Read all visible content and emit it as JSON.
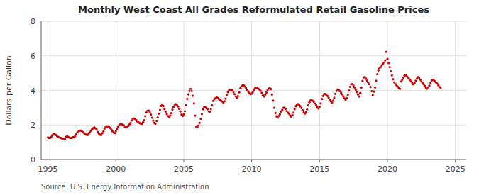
{
  "chart_data": {
    "type": "scatter",
    "title": "Monthly West Coast All Grades Reformulated Retail Gasoline Prices",
    "ylabel": "Dollars per Gallon",
    "source": "Source: U.S. Energy Information Administration",
    "color": "#cc0000",
    "grid": true,
    "xlim": [
      1994.5,
      2025.8
    ],
    "ylim": [
      0,
      8
    ],
    "yticks": [
      0,
      2,
      4,
      6,
      8
    ],
    "xticks": [
      1995,
      2000,
      2005,
      2010,
      2015,
      2020,
      2025
    ],
    "x": [
      1995,
      1995.0833,
      1995.1667,
      1995.25,
      1995.3333,
      1995.4167,
      1995.5,
      1995.5833,
      1995.6667,
      1995.75,
      1995.8333,
      1995.9167,
      1996,
      1996.0833,
      1996.1667,
      1996.25,
      1996.3333,
      1996.4167,
      1996.5,
      1996.5833,
      1996.6667,
      1996.75,
      1996.8333,
      1996.9167,
      1997,
      1997.0833,
      1997.1667,
      1997.25,
      1997.3333,
      1997.4167,
      1997.5,
      1997.5833,
      1997.6667,
      1997.75,
      1997.8333,
      1997.9167,
      1998,
      1998.0833,
      1998.1667,
      1998.25,
      1998.3333,
      1998.4167,
      1998.5,
      1998.5833,
      1998.6667,
      1998.75,
      1998.8333,
      1998.9167,
      1999,
      1999.0833,
      1999.1667,
      1999.25,
      1999.3333,
      1999.4167,
      1999.5,
      1999.5833,
      1999.6667,
      1999.75,
      1999.8333,
      1999.9167,
      2000,
      2000.0833,
      2000.1667,
      2000.25,
      2000.3333,
      2000.4167,
      2000.5,
      2000.5833,
      2000.6667,
      2000.75,
      2000.8333,
      2000.9167,
      2001,
      2001.0833,
      2001.1667,
      2001.25,
      2001.3333,
      2001.4167,
      2001.5,
      2001.5833,
      2001.6667,
      2001.75,
      2001.8333,
      2001.9167,
      2002,
      2002.0833,
      2002.1667,
      2002.25,
      2002.3333,
      2002.4167,
      2002.5,
      2002.5833,
      2002.6667,
      2002.75,
      2002.8333,
      2002.9167,
      2003,
      2003.0833,
      2003.1667,
      2003.25,
      2003.3333,
      2003.4167,
      2003.5,
      2003.5833,
      2003.6667,
      2003.75,
      2003.8333,
      2003.9167,
      2004,
      2004.0833,
      2004.1667,
      2004.25,
      2004.3333,
      2004.4167,
      2004.5,
      2004.5833,
      2004.6667,
      2004.75,
      2004.8333,
      2004.9167,
      2005,
      2005.0833,
      2005.1667,
      2005.25,
      2005.3333,
      2005.4167,
      2005.5,
      2005.5833,
      2005.6667,
      2005.75,
      2005.8333,
      2005.9167,
      2006,
      2006.0833,
      2006.1667,
      2006.25,
      2006.3333,
      2006.4167,
      2006.5,
      2006.5833,
      2006.6667,
      2006.75,
      2006.8333,
      2006.9167,
      2007,
      2007.0833,
      2007.1667,
      2007.25,
      2007.3333,
      2007.4167,
      2007.5,
      2007.5833,
      2007.6667,
      2007.75,
      2007.8333,
      2007.9167,
      2008,
      2008.0833,
      2008.1667,
      2008.25,
      2008.3333,
      2008.4167,
      2008.5,
      2008.5833,
      2008.6667,
      2008.75,
      2008.8333,
      2008.9167,
      2009,
      2009.0833,
      2009.1667,
      2009.25,
      2009.3333,
      2009.4167,
      2009.5,
      2009.5833,
      2009.6667,
      2009.75,
      2009.8333,
      2009.9167,
      2010,
      2010.0833,
      2010.1667,
      2010.25,
      2010.3333,
      2010.4167,
      2010.5,
      2010.5833,
      2010.6667,
      2010.75,
      2010.8333,
      2010.9167,
      2011,
      2011.0833,
      2011.1667,
      2011.25,
      2011.3333,
      2011.4167,
      2011.5,
      2011.5833,
      2011.6667,
      2011.75,
      2011.8333,
      2011.9167,
      2012,
      2012.0833,
      2012.1667,
      2012.25,
      2012.3333,
      2012.4167,
      2012.5,
      2012.5833,
      2012.6667,
      2012.75,
      2012.8333,
      2012.9167,
      2013,
      2013.0833,
      2013.1667,
      2013.25,
      2013.3333,
      2013.4167,
      2013.5,
      2013.5833,
      2013.6667,
      2013.75,
      2013.8333,
      2013.9167,
      2014,
      2014.0833,
      2014.1667,
      2014.25,
      2014.3333,
      2014.4167,
      2014.5,
      2014.5833,
      2014.6667,
      2014.75,
      2014.8333,
      2014.9167,
      2015,
      2015.0833,
      2015.1667,
      2015.25,
      2015.3333,
      2015.4167,
      2015.5,
      2015.5833,
      2015.6667,
      2015.75,
      2015.8333,
      2015.9167,
      2016,
      2016.0833,
      2016.1667,
      2016.25,
      2016.3333,
      2016.4167,
      2016.5,
      2016.5833,
      2016.6667,
      2016.75,
      2016.8333,
      2016.9167,
      2017,
      2017.0833,
      2017.1667,
      2017.25,
      2017.3333,
      2017.4167,
      2017.5,
      2017.5833,
      2017.6667,
      2017.75,
      2017.8333,
      2017.9167,
      2018,
      2018.0833,
      2018.1667,
      2018.25,
      2018.3333,
      2018.4167,
      2018.5,
      2018.5833,
      2018.6667,
      2018.75,
      2018.8333,
      2018.9167,
      2019,
      2019.0833,
      2019.1667,
      2019.25,
      2019.3333,
      2019.4167,
      2019.5,
      2019.5833,
      2019.6667,
      2019.75,
      2019.8333,
      2019.9167,
      2020,
      2020.0833,
      2020.1667,
      2020.25,
      2020.3333,
      2020.4167,
      2020.5,
      2020.5833,
      2020.6667,
      2020.75,
      2020.8333,
      2020.9167,
      2021,
      2021.0833,
      2021.1667,
      2021.25,
      2021.3333,
      2021.4167,
      2021.5,
      2021.5833,
      2021.6667,
      2021.75,
      2021.8333,
      2021.9167,
      2022,
      2022.0833,
      2022.1667,
      2022.25,
      2022.3333,
      2022.4167,
      2022.5,
      2022.5833,
      2022.6667,
      2022.75,
      2022.8333,
      2022.9167,
      2023,
      2023.0833,
      2023.1667,
      2023.25,
      2023.3333,
      2023.4167,
      2023.5,
      2023.5833,
      2023.6667,
      2023.75,
      2023.8333,
      2023.9167
    ],
    "values": [
      1.28,
      1.25,
      1.26,
      1.32,
      1.41,
      1.46,
      1.46,
      1.42,
      1.36,
      1.31,
      1.28,
      1.26,
      1.24,
      1.18,
      1.17,
      1.2,
      1.31,
      1.35,
      1.31,
      1.27,
      1.24,
      1.26,
      1.3,
      1.3,
      1.35,
      1.46,
      1.57,
      1.62,
      1.67,
      1.68,
      1.65,
      1.58,
      1.52,
      1.47,
      1.44,
      1.42,
      1.51,
      1.58,
      1.67,
      1.75,
      1.82,
      1.86,
      1.8,
      1.73,
      1.6,
      1.5,
      1.44,
      1.42,
      1.52,
      1.63,
      1.79,
      1.88,
      1.92,
      1.92,
      1.87,
      1.83,
      1.74,
      1.64,
      1.57,
      1.53,
      1.64,
      1.75,
      1.88,
      1.98,
      2.05,
      2.06,
      2.02,
      1.98,
      1.9,
      1.87,
      1.9,
      1.95,
      2.04,
      2.12,
      2.26,
      2.36,
      2.38,
      2.36,
      2.28,
      2.21,
      2.15,
      2.11,
      2.08,
      2.06,
      2.16,
      2.27,
      2.51,
      2.72,
      2.82,
      2.83,
      2.72,
      2.6,
      2.42,
      2.25,
      2.12,
      2.08,
      2.24,
      2.44,
      2.65,
      2.87,
      3.1,
      3.17,
      3.09,
      2.92,
      2.77,
      2.63,
      2.52,
      2.46,
      2.54,
      2.68,
      2.89,
      3.04,
      3.16,
      3.2,
      3.15,
      3.07,
      2.93,
      2.78,
      2.6,
      2.52,
      2.61,
      2.8,
      3.15,
      3.51,
      3.77,
      3.97,
      4.09,
      3.97,
      3.69,
      3.25,
      2.54,
      1.9,
      1.88,
      1.97,
      2.12,
      2.36,
      2.64,
      2.91,
      3.04,
      3.04,
      2.97,
      2.91,
      2.79,
      2.77,
      2.92,
      3.13,
      3.39,
      3.49,
      3.54,
      3.6,
      3.57,
      3.51,
      3.44,
      3.4,
      3.36,
      3.29,
      3.37,
      3.52,
      3.73,
      3.9,
      4.01,
      4.04,
      4.04,
      4.0,
      3.9,
      3.78,
      3.65,
      3.57,
      3.67,
      3.89,
      4.13,
      4.24,
      4.3,
      4.3,
      4.22,
      4.13,
      4.03,
      3.94,
      3.85,
      3.78,
      3.82,
      3.91,
      4.04,
      4.13,
      4.16,
      4.15,
      4.1,
      4.05,
      3.97,
      3.85,
      3.72,
      3.65,
      3.75,
      3.88,
      4.03,
      4.11,
      4.14,
      4.08,
      3.76,
      3.41,
      2.99,
      2.69,
      2.5,
      2.43,
      2.53,
      2.63,
      2.77,
      2.86,
      2.99,
      3.0,
      2.93,
      2.81,
      2.72,
      2.65,
      2.55,
      2.48,
      2.57,
      2.71,
      2.92,
      3.09,
      3.18,
      3.21,
      3.17,
      3.08,
      2.98,
      2.86,
      2.73,
      2.66,
      2.73,
      2.9,
      3.13,
      3.31,
      3.41,
      3.44,
      3.4,
      3.34,
      3.24,
      3.14,
      3.03,
      2.95,
      3.05,
      3.25,
      3.5,
      3.68,
      3.78,
      3.79,
      3.74,
      3.68,
      3.58,
      3.47,
      3.38,
      3.3,
      3.41,
      3.58,
      3.8,
      3.97,
      4.06,
      4.04,
      3.96,
      3.87,
      3.77,
      3.66,
      3.54,
      3.46,
      3.55,
      3.74,
      4.0,
      4.21,
      4.36,
      4.37,
      4.28,
      4.17,
      4.04,
      3.9,
      3.76,
      3.65,
      3.85,
      4.17,
      4.55,
      4.75,
      4.78,
      4.68,
      4.57,
      4.46,
      4.36,
      4.2,
      3.96,
      3.74,
      3.93,
      4.17,
      4.56,
      4.94,
      5.16,
      5.28,
      5.36,
      5.46,
      5.54,
      5.62,
      5.74,
      6.23,
      5.82,
      5.58,
      5.35,
      5.1,
      4.87,
      4.65,
      4.47,
      4.38,
      4.3,
      4.22,
      4.14,
      4.09,
      4.52,
      4.62,
      4.74,
      4.86,
      4.9,
      4.83,
      4.76,
      4.68,
      4.6,
      4.52,
      4.43,
      4.35,
      4.44,
      4.56,
      4.68,
      4.78,
      4.72,
      4.62,
      4.52,
      4.43,
      4.35,
      4.26,
      4.16,
      4.1,
      4.18,
      4.28,
      4.44,
      4.57,
      4.62,
      4.58,
      4.52,
      4.46,
      4.4,
      4.3,
      4.2,
      4.15
    ]
  }
}
